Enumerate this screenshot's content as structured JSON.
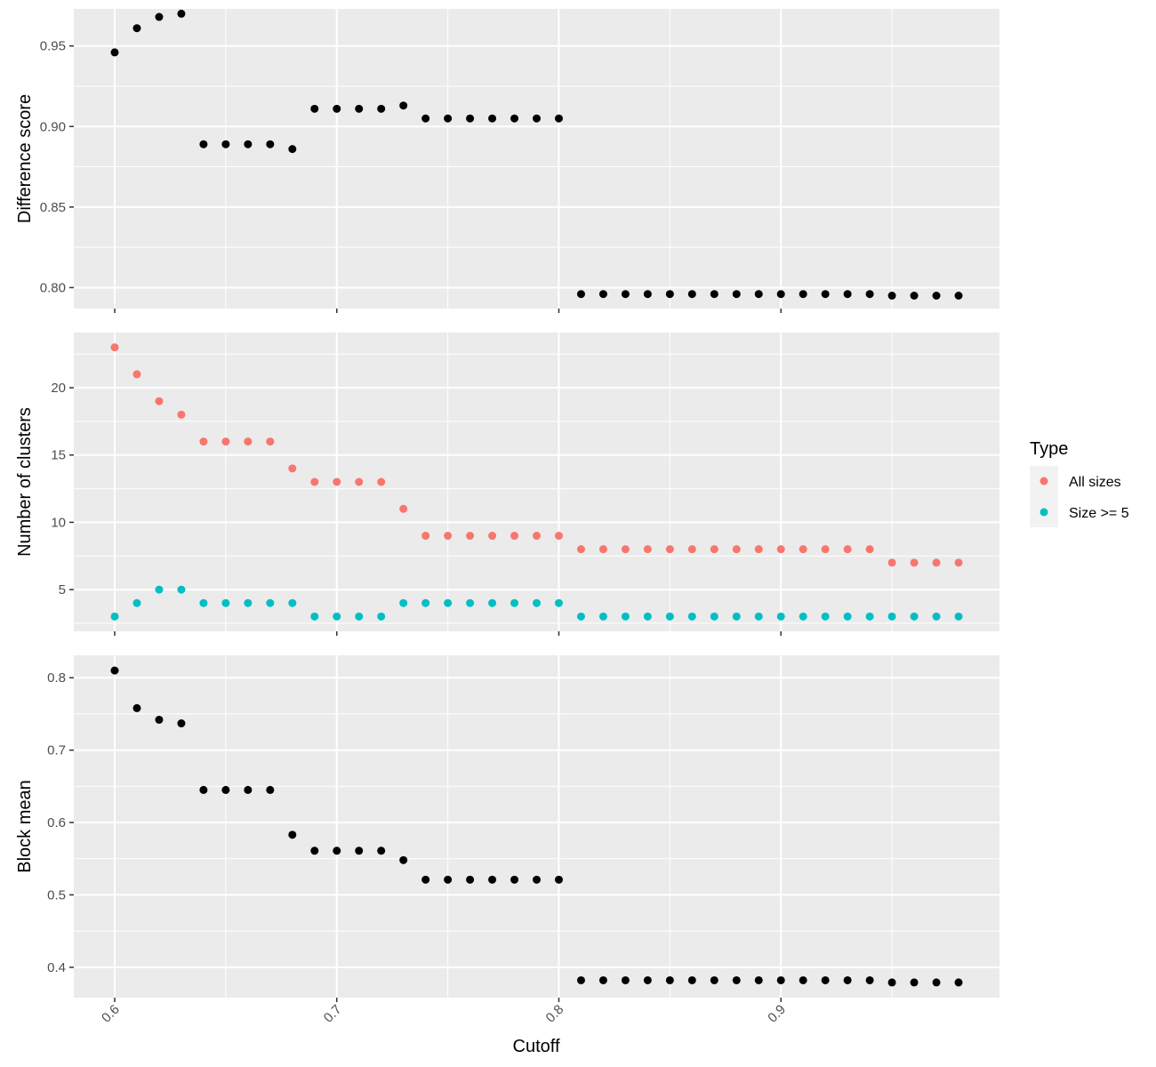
{
  "chart_data": {
    "type": "scatter",
    "layout": "faceted-vertical",
    "shared_x": true,
    "xlabel": "Cutoff",
    "xlim": [
      0.6,
      0.98
    ],
    "x_ticks": [
      0.6,
      0.7,
      0.8,
      0.9
    ],
    "x_tick_labels": [
      "0.6",
      "0.7",
      "0.8",
      "0.9"
    ],
    "x_tick_label_rotation_deg": 45,
    "grid": true,
    "background": "#ebebeb",
    "gridline_color": "#ffffff",
    "x": [
      0.6,
      0.61,
      0.62,
      0.63,
      0.64,
      0.65,
      0.66,
      0.67,
      0.68,
      0.69,
      0.7,
      0.71,
      0.72,
      0.73,
      0.74,
      0.75,
      0.76,
      0.77,
      0.78,
      0.79,
      0.8,
      0.81,
      0.82,
      0.83,
      0.84,
      0.85,
      0.86,
      0.87,
      0.88,
      0.89,
      0.9,
      0.91,
      0.92,
      0.93,
      0.94,
      0.95,
      0.96,
      0.97,
      0.98
    ],
    "panels": [
      {
        "ylabel": "Difference score",
        "ylim": [
          0.787,
          0.973
        ],
        "y_ticks": [
          0.8,
          0.85,
          0.9,
          0.95
        ],
        "y_tick_labels": [
          "0.80",
          "0.85",
          "0.90",
          "0.95"
        ],
        "series": [
          {
            "name": "",
            "color": "#000000",
            "values": [
              0.946,
              0.961,
              0.968,
              0.97,
              0.889,
              0.889,
              0.889,
              0.889,
              0.886,
              0.911,
              0.911,
              0.911,
              0.911,
              0.913,
              0.905,
              0.905,
              0.905,
              0.905,
              0.905,
              0.905,
              0.905,
              0.796,
              0.796,
              0.796,
              0.796,
              0.796,
              0.796,
              0.796,
              0.796,
              0.796,
              0.796,
              0.796,
              0.796,
              0.796,
              0.796,
              0.795,
              0.795,
              0.795,
              0.795
            ]
          }
        ]
      },
      {
        "ylabel": "Number of clusters",
        "ylim": [
          1.9,
          24.1
        ],
        "y_ticks": [
          5,
          10,
          15,
          20
        ],
        "y_tick_labels": [
          "5",
          "10",
          "15",
          "20"
        ],
        "series": [
          {
            "name": "All sizes",
            "color": "#F8766D",
            "values": [
              23,
              21,
              19,
              18,
              16,
              16,
              16,
              16,
              14,
              13,
              13,
              13,
              13,
              11,
              9,
              9,
              9,
              9,
              9,
              9,
              9,
              8,
              8,
              8,
              8,
              8,
              8,
              8,
              8,
              8,
              8,
              8,
              8,
              8,
              8,
              7,
              7,
              7,
              7
            ]
          },
          {
            "name": "Size >= 5",
            "color": "#00BFC4",
            "values": [
              3,
              4,
              5,
              5,
              4,
              4,
              4,
              4,
              4,
              3,
              3,
              3,
              3,
              4,
              4,
              4,
              4,
              4,
              4,
              4,
              4,
              3,
              3,
              3,
              3,
              3,
              3,
              3,
              3,
              3,
              3,
              3,
              3,
              3,
              3,
              3,
              3,
              3,
              3
            ]
          }
        ]
      },
      {
        "ylabel": "Block mean",
        "ylim": [
          0.358,
          0.831
        ],
        "y_ticks": [
          0.4,
          0.5,
          0.6,
          0.7,
          0.8
        ],
        "y_tick_labels": [
          "0.4",
          "0.5",
          "0.6",
          "0.7",
          "0.8"
        ],
        "series": [
          {
            "name": "",
            "color": "#000000",
            "values": [
              0.81,
              0.758,
              0.742,
              0.737,
              0.645,
              0.645,
              0.645,
              0.645,
              0.583,
              0.561,
              0.561,
              0.561,
              0.561,
              0.548,
              0.521,
              0.521,
              0.521,
              0.521,
              0.521,
              0.521,
              0.521,
              0.382,
              0.382,
              0.382,
              0.382,
              0.382,
              0.382,
              0.382,
              0.382,
              0.382,
              0.382,
              0.382,
              0.382,
              0.382,
              0.382,
              0.379,
              0.379,
              0.379,
              0.379
            ]
          }
        ]
      }
    ],
    "legend": {
      "title": "Type",
      "placement": "right",
      "entries": [
        {
          "label": "All sizes",
          "color": "#F8766D"
        },
        {
          "label": "Size >= 5",
          "color": "#00BFC4"
        }
      ]
    }
  }
}
